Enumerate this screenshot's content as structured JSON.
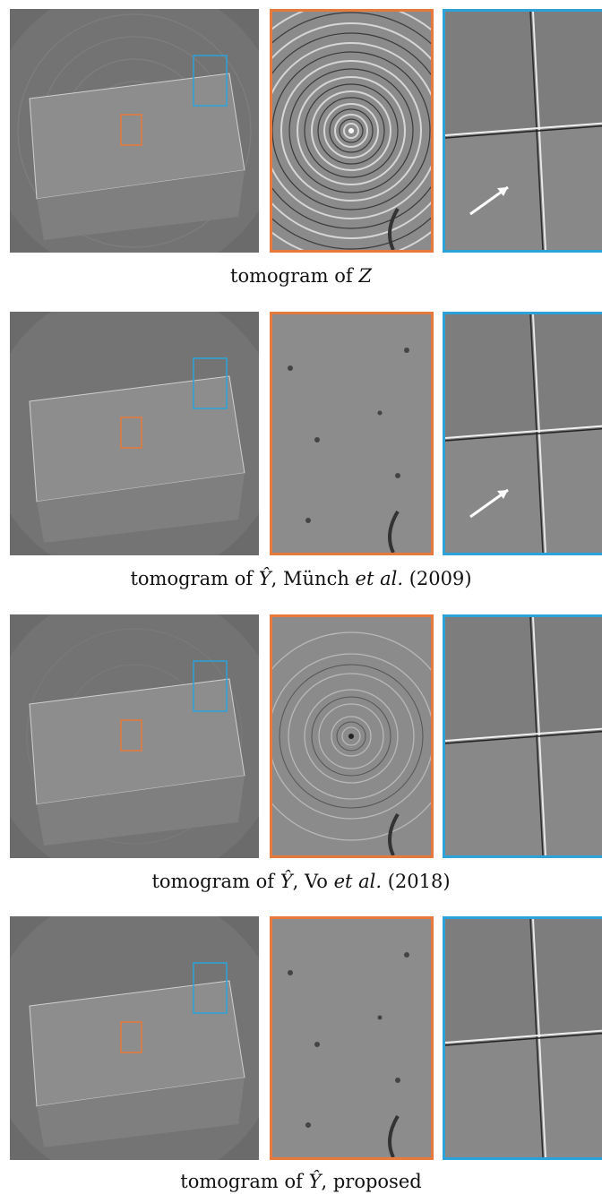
{
  "rows": [
    {
      "caption_pre": "tomogram of ",
      "caption_sym": "Z",
      "caption_post": "",
      "caption_italic": "",
      "caption_tail": "",
      "arrow": true,
      "rings": "strong"
    },
    {
      "caption_pre": "tomogram of ",
      "caption_sym": "Ŷ",
      "caption_post": ", Münch ",
      "caption_italic": "et al.",
      "caption_tail": " (2009)",
      "arrow": true,
      "rings": "none"
    },
    {
      "caption_pre": "tomogram of ",
      "caption_sym": "Ŷ",
      "caption_post": ", Vo ",
      "caption_italic": "et al.",
      "caption_tail": " (2018)",
      "arrow": false,
      "rings": "medium"
    },
    {
      "caption_pre": "tomogram of ",
      "caption_sym": "Ŷ",
      "caption_post": ", proposed",
      "caption_italic": "",
      "caption_tail": "",
      "arrow": false,
      "rings": "faint"
    }
  ],
  "colors": {
    "orange_box": "#e8793a",
    "blue_box": "#2ba3da"
  }
}
